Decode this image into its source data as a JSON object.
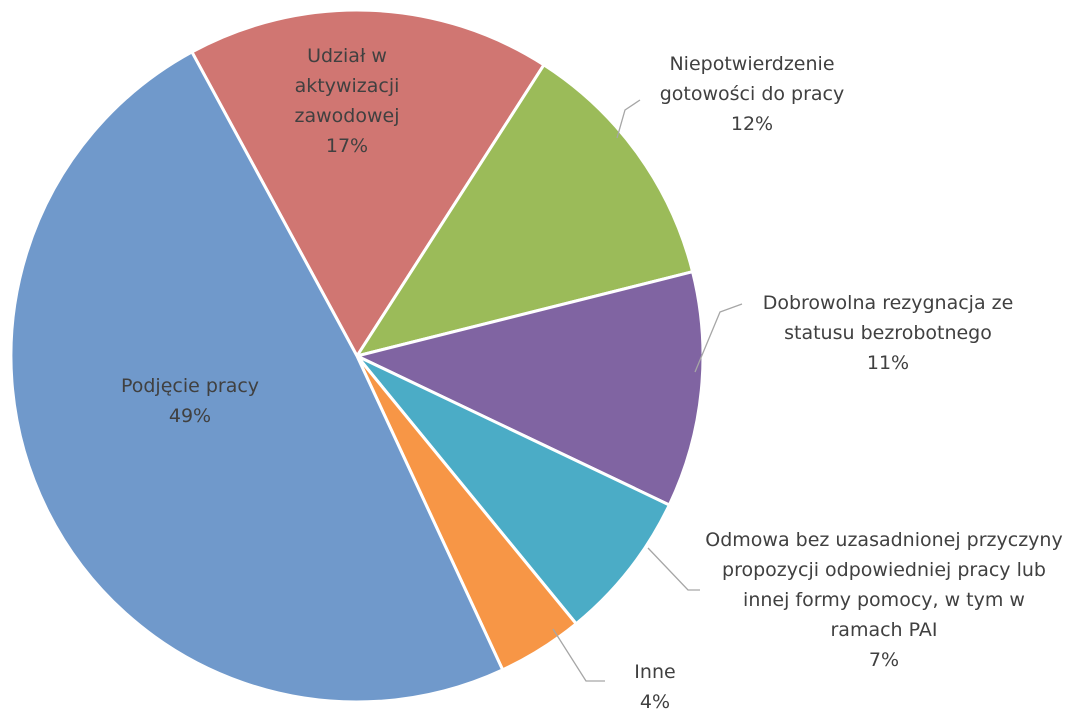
{
  "chart_data": {
    "type": "pie",
    "legend": "none",
    "slices": [
      {
        "label": "Udział w aktywizacji zawodowej",
        "lines": [
          "Udział w",
          "aktywizacji",
          "zawodowej"
        ],
        "pct_label": "17%",
        "value": 17,
        "color": "#D07672"
      },
      {
        "label": "Niepotwierdzenie gotowości do pracy",
        "lines": [
          "Niepotwierdzenie",
          "gotowości do pracy"
        ],
        "pct_label": "12%",
        "value": 12,
        "color": "#9BBB59"
      },
      {
        "label": "Dobrowolna rezygnacja ze statusu bezrobotnego",
        "lines": [
          "Dobrowolna rezygnacja ze",
          "statusu bezrobotnego"
        ],
        "pct_label": "11%",
        "value": 11,
        "color": "#8064A2"
      },
      {
        "label": "Odmowa bez uzasadnionej przyczyny propozycji odpowiedniej pracy lub innej formy pomocy, w tym w ramach PAI",
        "lines": [
          "Odmowa bez uzasadnionej przyczyny",
          "propozycji odpowiedniej pracy lub",
          "innej formy pomocy, w tym w",
          "ramach PAI"
        ],
        "pct_label": "7%",
        "value": 7,
        "color": "#4BACC6"
      },
      {
        "label": "Inne",
        "lines": [
          "Inne"
        ],
        "pct_label": "4%",
        "value": 4,
        "color": "#F79646"
      },
      {
        "label": "Podjęcie pracy",
        "lines": [
          "Podjęcie pracy"
        ],
        "pct_label": "49%",
        "value": 49,
        "color": "#7099CB"
      }
    ]
  }
}
